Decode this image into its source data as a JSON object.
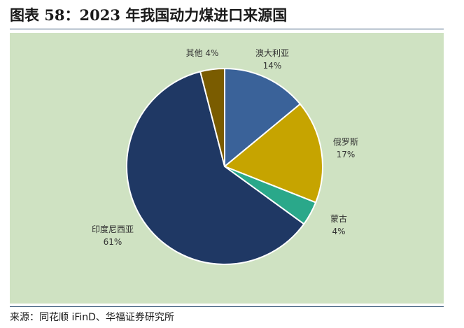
{
  "title": "图表 58：2023 年我国动力煤进口来源国",
  "source": "来源：同花顺 iFinD、华福证券研究所",
  "chart_data": {
    "type": "pie",
    "title": "2023 年我国动力煤进口来源国",
    "slices": [
      {
        "label": "澳大利亚",
        "value": 14,
        "value_label": "14%",
        "color": "#3a6299"
      },
      {
        "label": "俄罗斯",
        "value": 17,
        "value_label": "17%",
        "color": "#c6a400"
      },
      {
        "label": "蒙古",
        "value": 4,
        "value_label": "4%",
        "color": "#2aa88a"
      },
      {
        "label": "印度尼西亚",
        "value": 61,
        "value_label": "61%",
        "color": "#1f3864"
      },
      {
        "label": "其他",
        "value": 4,
        "value_label": "4%",
        "color": "#7a5c00"
      }
    ],
    "label_color": "#333333",
    "legend": "none"
  }
}
